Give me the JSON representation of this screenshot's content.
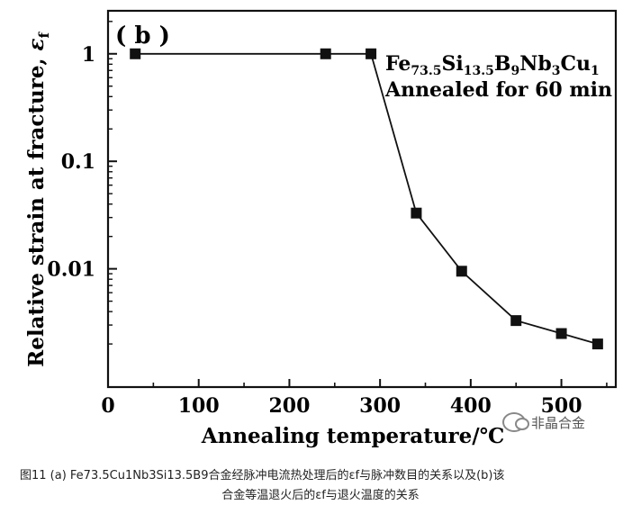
{
  "chart_data": {
    "type": "line",
    "panel_label": "( b )",
    "ylabel_text": "Relative strain at fracture, ",
    "ylabel_symbol": "ε",
    "ylabel_sub": "f",
    "xlabel": "Annealing temperature/℃",
    "xlim": [
      0,
      560
    ],
    "ylim_log10": [
      -3.1,
      0.4
    ],
    "yscale": "log",
    "xticks": [
      "0",
      "100",
      "200",
      "300",
      "400",
      "500"
    ],
    "xtick_values": [
      0,
      100,
      200,
      300,
      400,
      500
    ],
    "yticks": [
      "1",
      "0.1",
      "0.01"
    ],
    "ytick_values": [
      1,
      0.1,
      0.01
    ],
    "legend_line1": [
      "Fe",
      "73.5",
      "Si",
      "13.5",
      "B",
      "9",
      "Nb",
      "3",
      "Cu",
      "1"
    ],
    "legend_line2": "Annealed for 60 min",
    "series": [
      {
        "x": [
          30,
          240,
          290,
          340,
          390,
          450,
          500,
          540
        ],
        "y": [
          1.0,
          1.0,
          1.0,
          0.033,
          0.0095,
          0.0033,
          0.0025,
          0.002
        ]
      }
    ]
  },
  "watermark": "非晶合金",
  "caption": {
    "line1": "图11 (a) Fe73.5Cu1Nb3Si13.5B9合金经脉冲电流热处理后的εf与脉冲数目的关系以及(b)该",
    "line2": "合金等温退火后的εf与退火温度的关系"
  },
  "colors": {
    "ink": "#111111",
    "caption": "#222222"
  }
}
